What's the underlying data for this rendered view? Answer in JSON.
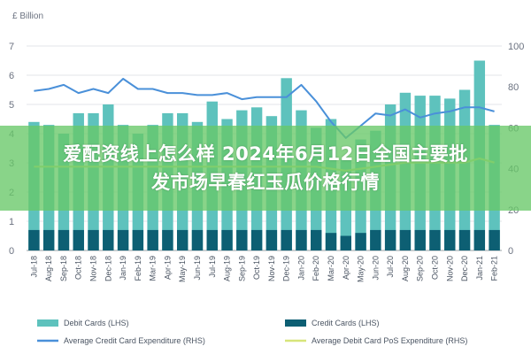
{
  "chart_data": {
    "type": "bar",
    "left_axis_unit": "£ Billion",
    "left_axis_ticks": [
      "0",
      "1",
      "2",
      "3",
      "4",
      "5",
      "6",
      "7"
    ],
    "right_axis_ticks": [
      "0",
      "20",
      "40",
      "60",
      "80",
      "100"
    ],
    "ylim_left": [
      0,
      7
    ],
    "ylim_right": [
      0,
      100
    ],
    "categories": [
      "Jul-18",
      "Aug-18",
      "Sep-18",
      "Oct-18",
      "Nov-18",
      "Dec-18",
      "Jan-19",
      "Feb-19",
      "Mar-19",
      "Apr-19",
      "May-19",
      "Jun-19",
      "Jul-19",
      "Aug-19",
      "Sep-19",
      "Oct-19",
      "Nov-19",
      "Dec-19",
      "Jan-20",
      "Feb-20",
      "Mar-20",
      "Apr-20",
      "May-20",
      "Jun-20",
      "Jul-20",
      "Aug-20",
      "Sep-20",
      "Oct-20",
      "Nov-20",
      "Dec-20",
      "Jan-21",
      "Feb-21"
    ],
    "x_tick_labels": [
      "Jul-18",
      "Aug-18",
      "Sep-18",
      "Oct-18",
      "Nov-18",
      "Dec-18",
      "Jan-19",
      "Feb-19",
      "Mar-19",
      "Apr-19",
      "May-19",
      "Jun-19",
      "Jul-19",
      "Aug-19",
      "Sep-19",
      "Oct-19",
      "Nov-19",
      "Dec-19",
      "Jan-20",
      "Feb-20",
      "Mar-20",
      "Apr-20",
      "May-20",
      "Jun-20",
      "Jul-20",
      "Aug-20",
      "Sep-20",
      "Oct-20",
      "Nov-20",
      "Dec-20",
      "Jan-21",
      "Feb-21"
    ],
    "series": [
      {
        "name": "Debit Cards (LHS)",
        "kind": "bar",
        "axis": "left",
        "color": "#5ec2bd",
        "values": [
          4.4,
          4.3,
          4.0,
          4.7,
          4.7,
          5.0,
          4.3,
          4.0,
          4.3,
          4.7,
          4.7,
          4.4,
          5.1,
          4.5,
          4.8,
          4.9,
          4.6,
          5.9,
          4.8,
          4.2,
          4.5,
          3.1,
          3.8,
          4.1,
          5.0,
          5.4,
          5.3,
          5.3,
          5.2,
          5.5,
          6.5,
          4.3
        ]
      },
      {
        "name": "Credit Cards (LHS)",
        "kind": "bar",
        "axis": "left",
        "color": "#0d5f73",
        "values": [
          0.7,
          0.7,
          0.7,
          0.7,
          0.7,
          0.7,
          0.7,
          0.7,
          0.7,
          0.7,
          0.7,
          0.7,
          0.7,
          0.7,
          0.7,
          0.7,
          0.7,
          0.7,
          0.7,
          0.7,
          0.6,
          0.5,
          0.6,
          0.7,
          0.7,
          0.7,
          0.7,
          0.7,
          0.7,
          0.7,
          0.7,
          0.7
        ]
      },
      {
        "name": "Average Credit Card Expenditure (RHS)",
        "kind": "line",
        "axis": "right",
        "color": "#4a90d9",
        "values": [
          78,
          79,
          81,
          77,
          79,
          77,
          84,
          79,
          79,
          77,
          77,
          76,
          76,
          77,
          74,
          75,
          75,
          75,
          81,
          73,
          63,
          55,
          61,
          67,
          66,
          69,
          65,
          67,
          68,
          70,
          70,
          68
        ]
      },
      {
        "name": "Average Debit Card PoS Expenditure (RHS)",
        "kind": "line",
        "axis": "right",
        "color": "#d7e57a",
        "values": [
          41,
          41,
          41,
          41,
          41,
          41,
          41,
          41,
          41,
          41,
          41,
          41,
          41,
          41,
          41,
          41,
          41,
          41,
          41,
          41,
          40,
          39,
          40,
          41,
          42,
          43,
          43,
          43,
          43,
          43,
          45,
          43
        ]
      }
    ]
  },
  "overlay": {
    "line1": "爱配资线上怎么样 2024年6月12日全国主要批",
    "line2": "发市场早春红玉瓜价格行情"
  }
}
